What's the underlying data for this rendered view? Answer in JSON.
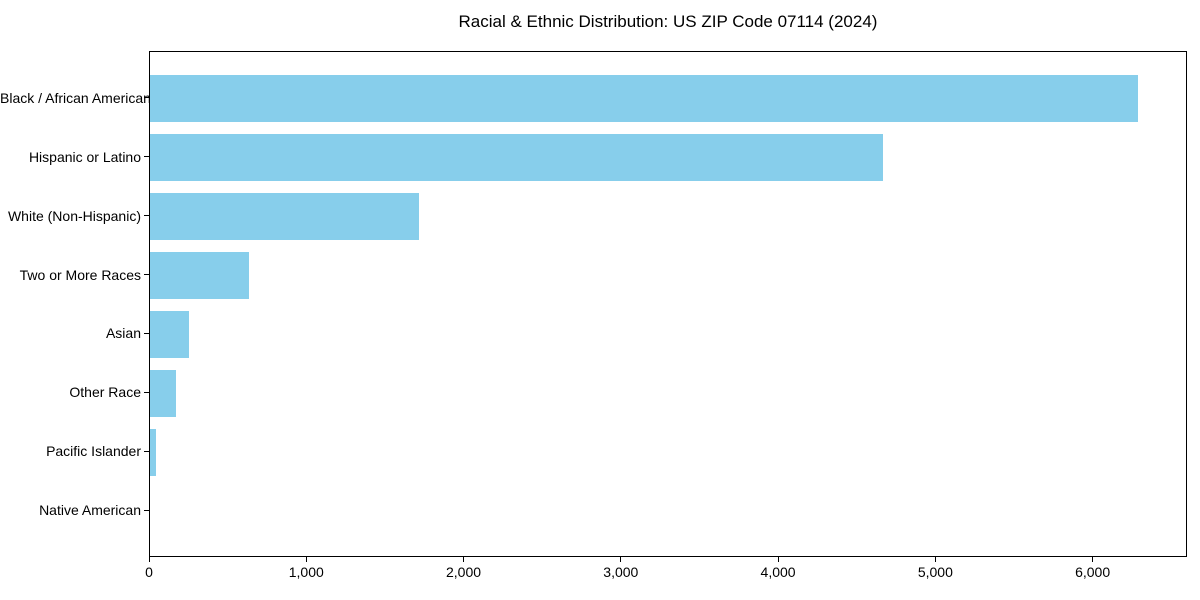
{
  "chart_data": {
    "type": "bar",
    "orientation": "horizontal",
    "title": "Racial & Ethnic Distribution: US ZIP Code 07114 (2024)",
    "categories": [
      "Black / African American",
      "Hispanic or Latino",
      "White (Non-Hispanic)",
      "Two or More Races",
      "Asian",
      "Other Race",
      "Pacific Islander",
      "Native American"
    ],
    "values": [
      6280,
      4660,
      1710,
      630,
      250,
      165,
      40,
      0
    ],
    "xlabel": "",
    "ylabel": "",
    "xlim": [
      0,
      6600
    ],
    "xticks": {
      "values": [
        0,
        1000,
        2000,
        3000,
        4000,
        5000,
        6000
      ],
      "labels": [
        "0",
        "1,000",
        "2,000",
        "3,000",
        "4,000",
        "5,000",
        "6,000"
      ]
    },
    "grid": false,
    "legend": "none",
    "bar_color": "#87CEEB",
    "axis_color": "#000000",
    "background_color": "#FFFFFF"
  }
}
